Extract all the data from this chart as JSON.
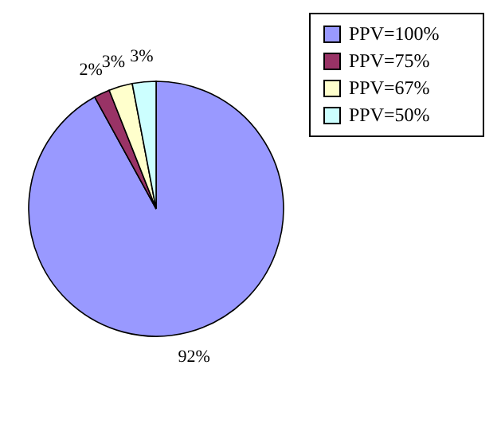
{
  "chart_data": {
    "type": "pie",
    "categories": [
      "PPV=100%",
      "PPV=75%",
      "PPV=67%",
      "PPV=50%"
    ],
    "values": [
      92,
      2,
      3,
      3
    ],
    "value_labels": [
      "92%",
      "2%",
      "3%",
      "3%"
    ],
    "colors": [
      "#9999ff",
      "#993366",
      "#ffffcc",
      "#ccffff"
    ],
    "legend": "top right"
  }
}
